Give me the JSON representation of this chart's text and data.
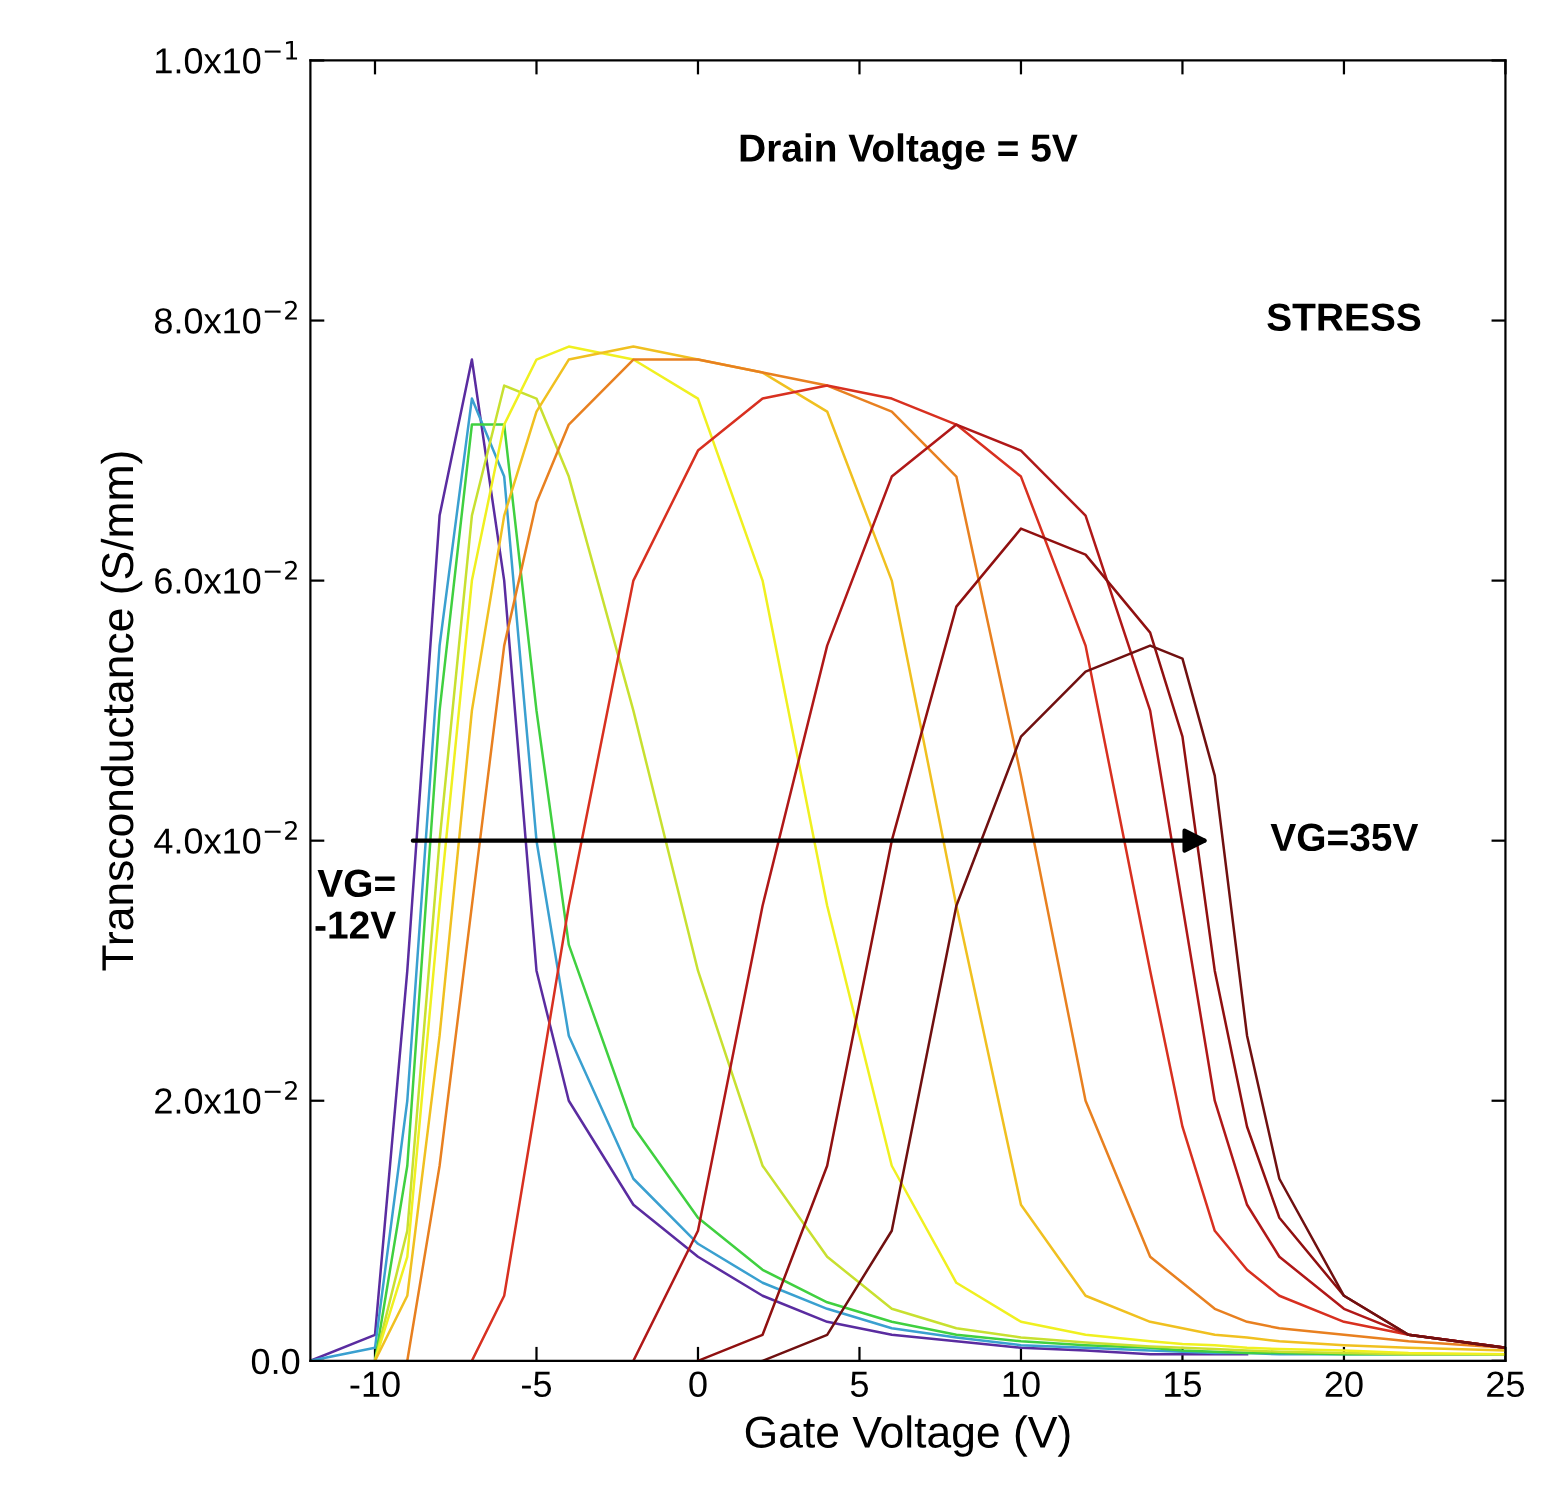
{
  "chart_data": {
    "type": "line",
    "xlabel": "Gate Voltage (V)",
    "ylabel": "Transconductance (S/mm)",
    "xlim": [
      -12,
      25
    ],
    "xticks": [
      -10,
      -5,
      0,
      5,
      10,
      15,
      20,
      25
    ],
    "ylim": [
      0,
      0.1
    ],
    "yticks": [
      {
        "value": 0,
        "label": "0.0"
      },
      {
        "value": 0.02,
        "label": "2.0x10$^{−2}$"
      },
      {
        "value": 0.04,
        "label": "4.0x10$^{−2}$"
      },
      {
        "value": 0.06,
        "label": "6.0x10$^{−2}$"
      },
      {
        "value": 0.08,
        "label": "8.0x10$^{−2}$"
      },
      {
        "value": 0.1,
        "label": "1.0x10$^{−1}$"
      }
    ],
    "grid": false,
    "marker": "none",
    "line_style": "solid",
    "annotations": [
      "Drain Voltage = 5V",
      "STRESS",
      {
        "text": "VG=\n-12V",
        "x": -9,
        "y": 0.04
      },
      {
        "text": "VG=35V",
        "x": 16,
        "y": 0.04
      }
    ],
    "x": [
      -12,
      -10,
      -9,
      -8,
      -7,
      -6,
      -5,
      -4,
      -2,
      0,
      2,
      4,
      6,
      8,
      10,
      12,
      14,
      15,
      16,
      17,
      18,
      20,
      22,
      25
    ],
    "series": [
      {
        "color": "#5a2ca0",
        "values": [
          0,
          0.002,
          0.03,
          0.065,
          0.077,
          0.06,
          0.03,
          0.02,
          0.012,
          0.008,
          0.005,
          0.003,
          0.002,
          0.0015,
          0.001,
          0.0008,
          0.0005,
          0.0005,
          0.0005,
          0.0005,
          null,
          null,
          null,
          null
        ]
      },
      {
        "color": "#3aa0d0",
        "values": [
          0,
          0.001,
          0.02,
          0.055,
          0.074,
          0.068,
          0.04,
          0.025,
          0.014,
          0.009,
          0.006,
          0.004,
          0.0025,
          0.0018,
          0.0012,
          0.001,
          0.0008,
          0.0007,
          0.0006,
          0.0006,
          0.0005,
          0.0005,
          0.0005,
          0.0005
        ]
      },
      {
        "color": "#40d040",
        "values": [
          null,
          0,
          0.015,
          0.05,
          0.072,
          0.072,
          0.05,
          0.032,
          0.018,
          0.011,
          0.007,
          0.0045,
          0.003,
          0.002,
          0.0015,
          0.0012,
          0.001,
          0.0008,
          0.0007,
          0.0006,
          0.0006,
          0.0005,
          0.0005,
          0.0005
        ]
      },
      {
        "color": "#c8e030",
        "values": [
          null,
          0,
          0.01,
          0.04,
          0.065,
          0.075,
          0.074,
          0.068,
          0.05,
          0.03,
          0.015,
          0.008,
          0.004,
          0.0025,
          0.0018,
          0.0014,
          0.0011,
          0.001,
          0.0009,
          0.0008,
          0.0007,
          0.0006,
          0.0005,
          0.0005
        ]
      },
      {
        "color": "#f0f020",
        "values": [
          null,
          0,
          0.008,
          0.035,
          0.06,
          0.072,
          0.077,
          0.078,
          0.077,
          0.074,
          0.06,
          0.035,
          0.015,
          0.006,
          0.003,
          0.002,
          0.0015,
          0.0013,
          0.0012,
          0.001,
          0.0009,
          0.0008,
          0.0006,
          0.0005
        ]
      },
      {
        "color": "#f0c020",
        "values": [
          null,
          0,
          0.005,
          0.025,
          0.05,
          0.065,
          0.073,
          0.077,
          0.078,
          0.077,
          0.076,
          0.073,
          0.06,
          0.035,
          0.012,
          0.005,
          0.003,
          0.0025,
          0.002,
          0.0018,
          0.0015,
          0.0012,
          0.001,
          0.0008
        ]
      },
      {
        "color": "#e88020",
        "values": [
          null,
          null,
          0,
          0.015,
          0.035,
          0.055,
          0.066,
          0.072,
          0.077,
          0.077,
          0.076,
          0.075,
          0.073,
          0.068,
          0.045,
          0.02,
          0.008,
          0.006,
          0.004,
          0.003,
          0.0025,
          0.002,
          0.0015,
          0.001
        ]
      },
      {
        "color": "#d83020",
        "values": [
          null,
          null,
          null,
          null,
          0,
          0.005,
          0.02,
          0.035,
          0.06,
          0.07,
          0.074,
          0.075,
          0.074,
          0.072,
          0.068,
          0.055,
          0.03,
          0.018,
          0.01,
          0.007,
          0.005,
          0.003,
          0.002,
          0.001
        ]
      },
      {
        "color": "#b01818",
        "values": [
          null,
          null,
          null,
          null,
          null,
          null,
          null,
          null,
          0,
          0.01,
          0.035,
          0.055,
          0.068,
          0.072,
          0.07,
          0.065,
          0.05,
          0.035,
          0.02,
          0.012,
          0.008,
          0.004,
          0.002,
          0.001
        ]
      },
      {
        "color": "#901010",
        "values": [
          null,
          null,
          null,
          null,
          null,
          null,
          null,
          null,
          null,
          0,
          0.002,
          0.015,
          0.04,
          0.058,
          0.064,
          0.062,
          0.056,
          0.048,
          0.03,
          0.018,
          0.011,
          0.005,
          0.002,
          0.001
        ]
      },
      {
        "color": "#701010",
        "values": [
          null,
          null,
          null,
          null,
          null,
          null,
          null,
          null,
          null,
          null,
          0,
          0.002,
          0.01,
          0.035,
          0.048,
          0.053,
          0.055,
          0.054,
          0.045,
          0.025,
          0.014,
          0.005,
          0.002,
          0.001
        ]
      }
    ]
  }
}
